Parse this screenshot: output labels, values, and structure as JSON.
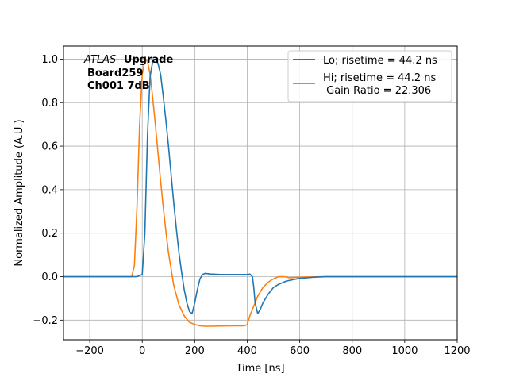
{
  "chart_data": {
    "type": "line",
    "xlabel": "Time [ns]",
    "ylabel": "Normalized Amplitude (A.U.)",
    "xlim": [
      -300,
      1200
    ],
    "ylim": [
      -0.29,
      1.06
    ],
    "xticks": [
      -200,
      0,
      200,
      400,
      600,
      800,
      1000,
      1200
    ],
    "yticks": [
      -0.2,
      0.0,
      0.2,
      0.4,
      0.6,
      0.8,
      1.0
    ],
    "xtick_labels": [
      "−200",
      "0",
      "200",
      "400",
      "600",
      "800",
      "1000",
      "1200"
    ],
    "ytick_labels": [
      "−0.2",
      "0.0",
      "0.2",
      "0.4",
      "0.6",
      "0.8",
      "1.0"
    ],
    "grid": true,
    "legend_position": "top-right",
    "annotation": {
      "line1_italic": "ATLAS",
      "line1_bold": "Upgrade",
      "line2": "Board259",
      "line3": "Ch001 7dB"
    },
    "series": [
      {
        "name": "Lo; risetime = 44.2 ns",
        "color": "#1f77b4",
        "x": [
          -300,
          -20,
          0,
          10,
          20,
          30,
          40,
          50,
          60,
          70,
          80,
          90,
          100,
          110,
          120,
          130,
          140,
          150,
          160,
          170,
          180,
          190,
          200,
          210,
          220,
          230,
          240,
          260,
          300,
          350,
          400,
          410,
          420,
          425,
          430,
          440,
          450,
          460,
          480,
          500,
          520,
          550,
          600,
          650,
          700,
          800,
          1000,
          1200
        ],
        "y": [
          0.0,
          0.0,
          0.01,
          0.2,
          0.65,
          0.92,
          0.99,
          1.0,
          0.98,
          0.93,
          0.83,
          0.72,
          0.6,
          0.47,
          0.34,
          0.22,
          0.11,
          0.02,
          -0.06,
          -0.12,
          -0.16,
          -0.17,
          -0.12,
          -0.06,
          -0.01,
          0.01,
          0.015,
          0.012,
          0.01,
          0.01,
          0.01,
          0.012,
          0.0,
          -0.05,
          -0.12,
          -0.17,
          -0.15,
          -0.12,
          -0.08,
          -0.05,
          -0.035,
          -0.02,
          -0.008,
          -0.003,
          0.0,
          0.0,
          0.0,
          0.0
        ]
      },
      {
        "name": "Hi; risetime = 44.2 ns\n Gain Ratio = 22.306",
        "color": "#ff7f0e",
        "x": [
          -300,
          -40,
          -30,
          -20,
          -10,
          0,
          10,
          20,
          30,
          40,
          50,
          60,
          70,
          80,
          90,
          100,
          120,
          140,
          160,
          180,
          200,
          220,
          240,
          260,
          300,
          350,
          390,
          400,
          410,
          420,
          430,
          440,
          460,
          480,
          500,
          520,
          540,
          560,
          600,
          650,
          700,
          800,
          1000,
          1200
        ],
        "y": [
          0.0,
          0.0,
          0.05,
          0.32,
          0.7,
          0.93,
          0.995,
          0.99,
          0.93,
          0.82,
          0.7,
          0.57,
          0.44,
          0.32,
          0.21,
          0.11,
          -0.04,
          -0.13,
          -0.18,
          -0.21,
          -0.22,
          -0.226,
          -0.228,
          -0.228,
          -0.227,
          -0.226,
          -0.226,
          -0.22,
          -0.18,
          -0.15,
          -0.12,
          -0.09,
          -0.05,
          -0.025,
          -0.01,
          0.0,
          0.0,
          -0.005,
          -0.003,
          -0.001,
          0.0,
          0.0,
          0.0,
          0.0
        ]
      }
    ]
  }
}
